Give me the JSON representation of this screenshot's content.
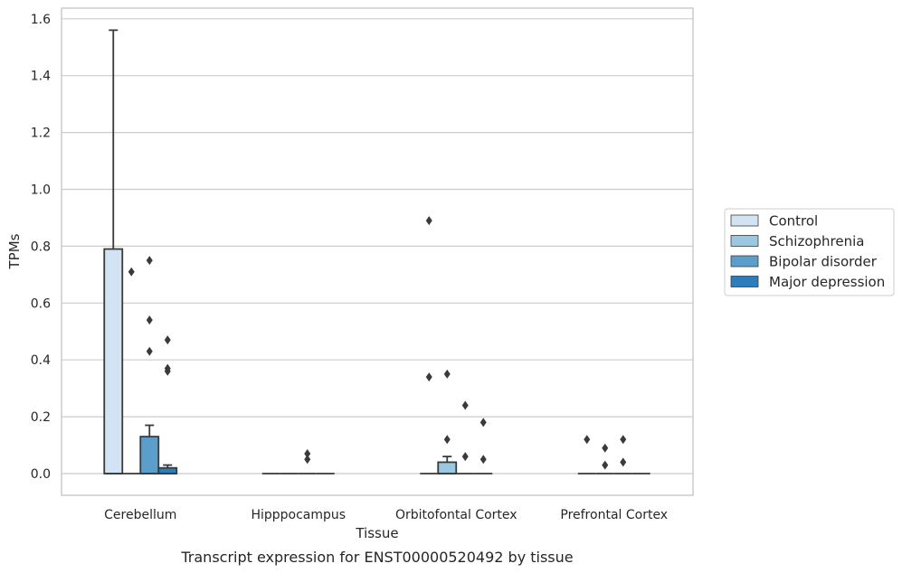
{
  "caption": "Transcript expression for ENST00000520492 by tissue",
  "chart_data": {
    "type": "box",
    "xlabel": "Tissue",
    "ylabel": "TPMs",
    "categories": [
      "Cerebellum",
      "Hipppocampus",
      "Orbitofontal Cortex",
      "Prefrontal Cortex"
    ],
    "y_ticks": [
      "0.0",
      "0.2",
      "0.4",
      "0.6",
      "0.8",
      "1.0",
      "1.2",
      "1.4",
      "1.6"
    ],
    "ylim": [
      -0.075,
      1.64
    ],
    "grid": "horizontal",
    "legend_position": "right",
    "series": [
      {
        "name": "Control",
        "color": "#d2e3f3",
        "boxes": [
          {
            "q1": 0.0,
            "median": 0.0,
            "q3": 0.79,
            "whisker_low": 0.0,
            "whisker_high": 1.56,
            "outliers": []
          },
          {
            "q1": 0.0,
            "median": 0.0,
            "q3": 0.0,
            "whisker_low": 0.0,
            "whisker_high": 0.0,
            "outliers": []
          },
          {
            "q1": 0.0,
            "median": 0.0,
            "q3": 0.0,
            "whisker_low": 0.0,
            "whisker_high": 0.0,
            "outliers": [
              0.89,
              0.34
            ]
          },
          {
            "q1": 0.0,
            "median": 0.0,
            "q3": 0.0,
            "whisker_low": 0.0,
            "whisker_high": 0.0,
            "outliers": [
              0.12
            ]
          }
        ]
      },
      {
        "name": "Schizophrenia",
        "color": "#9ac8e0",
        "boxes": [
          {
            "q1": 0.0,
            "median": 0.0,
            "q3": 0.0,
            "whisker_low": 0.0,
            "whisker_high": 0.0,
            "outliers": [
              0.71
            ]
          },
          {
            "q1": 0.0,
            "median": 0.0,
            "q3": 0.0,
            "whisker_low": 0.0,
            "whisker_high": 0.0,
            "outliers": []
          },
          {
            "q1": 0.0,
            "median": 0.0,
            "q3": 0.04,
            "whisker_low": 0.0,
            "whisker_high": 0.06,
            "outliers": [
              0.35,
              0.12
            ]
          },
          {
            "q1": 0.0,
            "median": 0.0,
            "q3": 0.0,
            "whisker_low": 0.0,
            "whisker_high": 0.0,
            "outliers": [
              0.09,
              0.03
            ]
          }
        ]
      },
      {
        "name": "Bipolar disorder",
        "color": "#5b9ec9",
        "boxes": [
          {
            "q1": 0.0,
            "median": 0.0,
            "q3": 0.13,
            "whisker_low": 0.0,
            "whisker_high": 0.17,
            "outliers": [
              0.75,
              0.54,
              0.43
            ]
          },
          {
            "q1": 0.0,
            "median": 0.0,
            "q3": 0.0,
            "whisker_low": 0.0,
            "whisker_high": 0.0,
            "outliers": [
              0.07,
              0.05
            ]
          },
          {
            "q1": 0.0,
            "median": 0.0,
            "q3": 0.0,
            "whisker_low": 0.0,
            "whisker_high": 0.0,
            "outliers": [
              0.24,
              0.06
            ]
          },
          {
            "q1": 0.0,
            "median": 0.0,
            "q3": 0.0,
            "whisker_low": 0.0,
            "whisker_high": 0.0,
            "outliers": [
              0.12,
              0.04
            ]
          }
        ]
      },
      {
        "name": "Major depression",
        "color": "#2d7dbb",
        "boxes": [
          {
            "q1": 0.0,
            "median": 0.0,
            "q3": 0.02,
            "whisker_low": 0.0,
            "whisker_high": 0.03,
            "outliers": [
              0.47,
              0.37,
              0.36
            ]
          },
          {
            "q1": 0.0,
            "median": 0.0,
            "q3": 0.0,
            "whisker_low": 0.0,
            "whisker_high": 0.0,
            "outliers": []
          },
          {
            "q1": 0.0,
            "median": 0.0,
            "q3": 0.0,
            "whisker_low": 0.0,
            "whisker_high": 0.0,
            "outliers": [
              0.18,
              0.05
            ]
          },
          {
            "q1": 0.0,
            "median": 0.0,
            "q3": 0.0,
            "whisker_low": 0.0,
            "whisker_high": 0.0,
            "outliers": []
          }
        ]
      }
    ]
  }
}
